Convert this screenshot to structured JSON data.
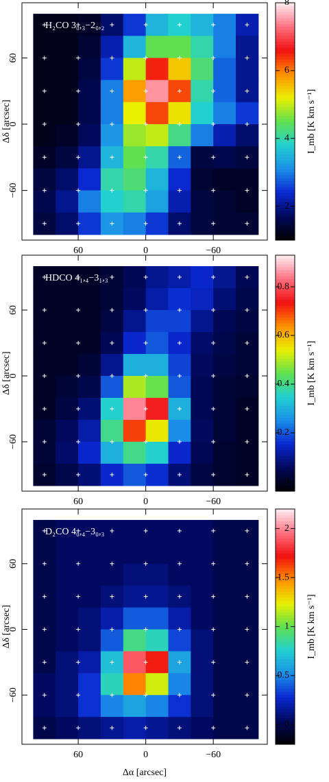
{
  "chart_data": [
    {
      "type": "heatmap",
      "title": "H₂CO 3₀,₃−2₀,₂",
      "ylabel": "Δδ  [arcsec]",
      "colorbar_label": "I_mb  [K km s⁻¹]",
      "x": [
        90,
        70,
        50,
        30,
        10,
        -10,
        -30,
        -50,
        -70,
        -90
      ],
      "y": [
        90,
        70,
        50,
        30,
        10,
        -10,
        -30,
        -50,
        -70,
        -90
      ],
      "values": [
        [
          1.2,
          1.2,
          1.3,
          1.8,
          2.5,
          3.5,
          3.8,
          3.5,
          3,
          2.2
        ],
        [
          1.2,
          1.2,
          1.4,
          2.2,
          3.5,
          4.5,
          4.5,
          4,
          3,
          2
        ],
        [
          1.2,
          1.2,
          1.5,
          2.5,
          5,
          6.5,
          5.5,
          4.3,
          2.8,
          2
        ],
        [
          1.2,
          1.2,
          1.6,
          3,
          5.8,
          7.5,
          6.3,
          4,
          2.8,
          2
        ],
        [
          1.2,
          1.2,
          1.6,
          3,
          5.2,
          6.3,
          5.3,
          3.8,
          3,
          2.5
        ],
        [
          1.2,
          1.3,
          1.7,
          3.2,
          4.8,
          5,
          4.2,
          3,
          2.2,
          1.8
        ],
        [
          1.3,
          1.5,
          2,
          3.5,
          4.5,
          4,
          2.8,
          1.5,
          1.6,
          1.5
        ],
        [
          1.5,
          1.8,
          2.4,
          4,
          4.3,
          3.5,
          2.4,
          1.4,
          1.3,
          1.3
        ],
        [
          1.6,
          2,
          3,
          3.8,
          4,
          3.3,
          2.2,
          1.5,
          1.4,
          1.3
        ],
        [
          1.5,
          1.8,
          2.5,
          3.2,
          3,
          2.5,
          1.8,
          1.5,
          1.4,
          1.4
        ]
      ],
      "xlim": [
        110,
        -108
      ],
      "ylim": [
        -105,
        110
      ],
      "xticks": [
        60,
        0,
        {
          "value": -60,
          "label": "−60"
        }
      ],
      "yticks": [
        60,
        0,
        {
          "value": -60,
          "label": "−60"
        }
      ],
      "clim": [
        1,
        8
      ],
      "cticks": [
        2,
        4,
        6,
        8
      ],
      "colormap": [
        "#000000",
        "#00085a",
        "#0a28d0",
        "#1a8ee8",
        "#22d0d0",
        "#60e050",
        "#e8f000",
        "#ff9000",
        "#f01010",
        "#ff7080",
        "#ffeef2"
      ]
    },
    {
      "type": "heatmap",
      "title": "HDCO 4₁,₄−3₁,₃",
      "ylabel": "Δδ  [arcsec]",
      "colorbar_label": "I_mb  [K km s⁻¹]",
      "x": [
        90,
        70,
        50,
        30,
        10,
        -10,
        -30,
        -50,
        -70,
        -90
      ],
      "y": [
        90,
        70,
        50,
        30,
        10,
        -10,
        -30,
        -50,
        -70,
        -90
      ],
      "values": [
        [
          0,
          0,
          0,
          0.02,
          0.05,
          0.1,
          0.12,
          0.15,
          0.1,
          0.05
        ],
        [
          0,
          0,
          0,
          0.02,
          0.06,
          0.12,
          0.16,
          0.14,
          0.08,
          0.04
        ],
        [
          0,
          0,
          0,
          0.03,
          0.1,
          0.18,
          0.18,
          0.1,
          0.05,
          0.03
        ],
        [
          0,
          0,
          0,
          0.05,
          0.15,
          0.2,
          0.15,
          0.07,
          0.04,
          0.02
        ],
        [
          0,
          0,
          0.02,
          0.1,
          0.3,
          0.3,
          0.18,
          0.06,
          0.03,
          0.02
        ],
        [
          0,
          0.02,
          0.04,
          0.2,
          0.5,
          0.45,
          0.2,
          0.05,
          0.02,
          0.01
        ],
        [
          0,
          0.03,
          0.08,
          0.35,
          0.85,
          0.75,
          0.3,
          0.05,
          0.02,
          0
        ],
        [
          0.02,
          0.06,
          0.12,
          0.4,
          0.7,
          0.55,
          0.25,
          0.06,
          0.02,
          0
        ],
        [
          0.02,
          0.07,
          0.15,
          0.3,
          0.4,
          0.35,
          0.15,
          0.05,
          0.01,
          0
        ],
        [
          0.01,
          0.04,
          0.08,
          0.15,
          0.2,
          0.16,
          0.08,
          0.03,
          0.01,
          0
        ]
      ],
      "xlim": [
        110,
        -108
      ],
      "ylim": [
        -105,
        110
      ],
      "xticks": [
        60,
        0,
        {
          "value": -60,
          "label": "−60"
        }
      ],
      "yticks": [
        60,
        0,
        {
          "value": -60,
          "label": "−60"
        }
      ],
      "clim": [
        -0.04,
        0.93
      ],
      "cticks": [
        0,
        0.2,
        0.4,
        0.6,
        0.8
      ],
      "colormap": [
        "#000000",
        "#00085a",
        "#0a28d0",
        "#1a8ee8",
        "#22d0d0",
        "#60e050",
        "#e8f000",
        "#ff9000",
        "#f01010",
        "#ff7080",
        "#ffeef2"
      ]
    },
    {
      "type": "heatmap",
      "title": "D₂CO 4₀,₄−3₀,₃",
      "ylabel": "Δδ  [arcsec]",
      "xlabel": "Δα  [arcsec]",
      "colorbar_label": "I_mb  [K km s⁻¹]",
      "x": [
        90,
        70,
        50,
        30,
        10,
        -10,
        -30,
        -50,
        -70,
        -90
      ],
      "y": [
        90,
        70,
        50,
        30,
        10,
        -10,
        -30,
        -50,
        -70,
        -90
      ],
      "values": [
        [
          0,
          0.05,
          0.05,
          0.05,
          0.05,
          0.05,
          0.05,
          0.05,
          0,
          0
        ],
        [
          0,
          0.05,
          0.05,
          0.05,
          0.05,
          0.05,
          0.05,
          0.05,
          0,
          0
        ],
        [
          0,
          0.05,
          0.05,
          0.05,
          0.1,
          0.1,
          0.05,
          0.05,
          0,
          0
        ],
        [
          0,
          0.05,
          0.05,
          0.1,
          0.15,
          0.15,
          0.1,
          0.05,
          0,
          0
        ],
        [
          0,
          0.05,
          0.1,
          0.2,
          0.4,
          0.4,
          0.2,
          0.05,
          0,
          0
        ],
        [
          0,
          0.05,
          0.1,
          0.4,
          0.9,
          0.8,
          0.35,
          0.1,
          0,
          0
        ],
        [
          0,
          0.1,
          0.2,
          0.7,
          1.9,
          1.7,
          0.6,
          0.1,
          0,
          0
        ],
        [
          0.05,
          0.1,
          0.3,
          0.8,
          1.5,
          1.2,
          0.5,
          0.1,
          0,
          0
        ],
        [
          0.05,
          0.1,
          0.3,
          0.5,
          0.6,
          0.5,
          0.3,
          0.1,
          0,
          0
        ],
        [
          0,
          0.05,
          0.1,
          0.15,
          0.2,
          0.15,
          0.1,
          0.05,
          0,
          0
        ]
      ],
      "xlim": [
        110,
        -108
      ],
      "ylim": [
        -105,
        110
      ],
      "xticks": [
        60,
        0,
        {
          "value": -60,
          "label": "−60"
        }
      ],
      "yticks": [
        60,
        0,
        {
          "value": -60,
          "label": "−60"
        }
      ],
      "clim": [
        -0.2,
        2.2
      ],
      "cticks": [
        0,
        0.5,
        1,
        1.5,
        2
      ],
      "colormap": [
        "#000000",
        "#00085a",
        "#0a28d0",
        "#1a8ee8",
        "#22d0d0",
        "#60e050",
        "#e8f000",
        "#ff9000",
        "#f01010",
        "#ff7080",
        "#ffeef2"
      ]
    }
  ]
}
